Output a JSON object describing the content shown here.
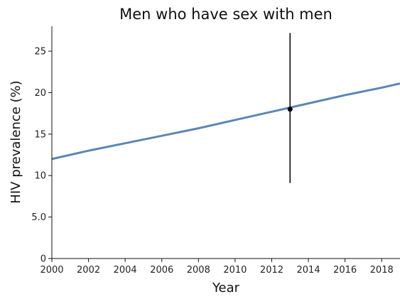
{
  "chart_data": {
    "type": "line",
    "title": "Men who have sex with men",
    "xlabel": "Year",
    "ylabel": "HIV prevalence (%)",
    "xlim": [
      2000,
      2019
    ],
    "ylim": [
      0,
      28
    ],
    "grid": false,
    "x_ticks": [
      2000,
      2002,
      2004,
      2006,
      2008,
      2010,
      2012,
      2014,
      2016,
      2018
    ],
    "x_tick_labels": [
      "2000",
      "2002",
      "2004",
      "2006",
      "2008",
      "2010",
      "2012",
      "2014",
      "2016",
      "2018"
    ],
    "y_ticks": [
      0,
      5,
      10,
      15,
      20,
      25
    ],
    "y_tick_labels": [
      "0",
      "5.0",
      "10",
      "15",
      "20",
      "25"
    ],
    "series": [
      {
        "color": "#5b86b5",
        "x": [
          2000,
          2002,
          2004,
          2006,
          2008,
          2010,
          2012,
          2014,
          2016,
          2018,
          2019
        ],
        "y": [
          12.0,
          13.0,
          13.9,
          14.8,
          15.7,
          16.7,
          17.7,
          18.7,
          19.7,
          20.6,
          21.1
        ]
      }
    ],
    "observation": {
      "x": 2013,
      "y": 18.0,
      "lower": 9.1,
      "upper": 27.2,
      "color": "#000000"
    }
  }
}
